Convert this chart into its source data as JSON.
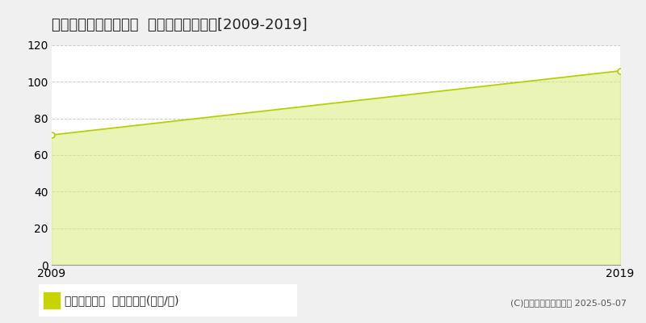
{
  "title": "大阪市東淀川区南江口  収益物件価格推移[2009-2019]",
  "x_values": [
    2009,
    2019
  ],
  "y_values": [
    71,
    106
  ],
  "ylim": [
    0,
    120
  ],
  "xlim": [
    2009,
    2019
  ],
  "yticks": [
    0,
    20,
    40,
    60,
    80,
    100,
    120
  ],
  "xticks": [
    2009,
    2019
  ],
  "line_color": "#b8cc00",
  "fill_color": "#d8ec7a",
  "fill_alpha": 0.55,
  "marker_color": "#ffffff",
  "marker_edge_color": "#b8cc00",
  "marker_size": 5,
  "background_color": "#f0f0f0",
  "plot_bg_color": "#ffffff",
  "grid_color": "#cccccc",
  "legend_label": "収益物件価格  平均坪単価(万円/坪)",
  "legend_square_color": "#c8d400",
  "copyright_text": "(C)土地価格ドットコム 2025-05-07",
  "title_fontsize": 13,
  "axis_fontsize": 10,
  "legend_fontsize": 10
}
